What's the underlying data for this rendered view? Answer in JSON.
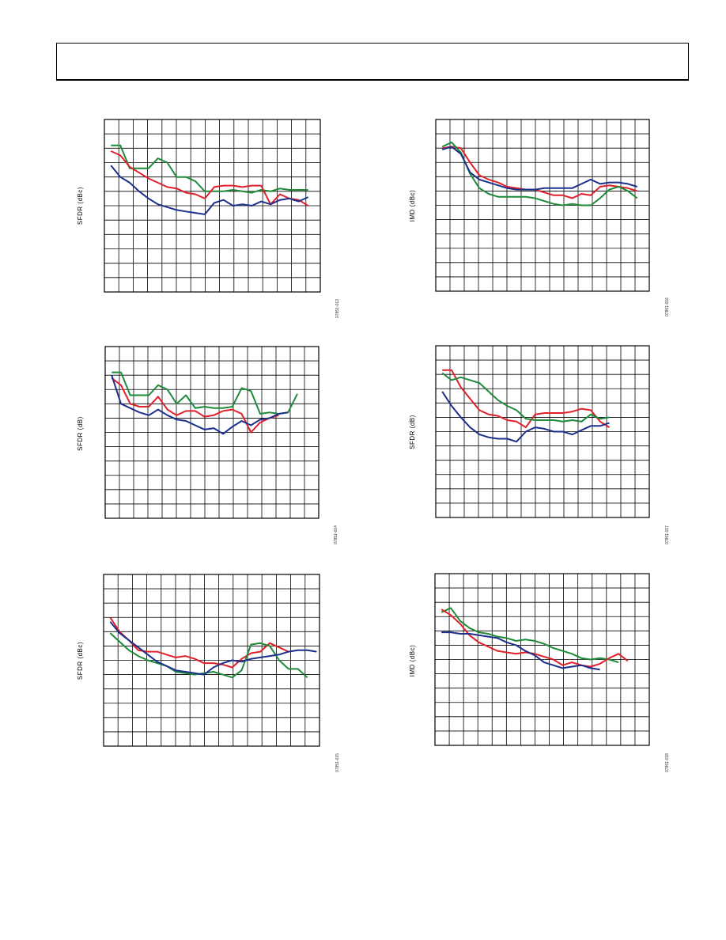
{
  "page": {
    "header_title": ""
  },
  "chart_data": [
    {
      "type": "line",
      "ylabel": "SFDR (dBc)",
      "figure_id": "07851-013",
      "grid": true,
      "xlim": [
        0,
        23
      ],
      "ylim": [
        0,
        12
      ],
      "series": [
        {
          "color": "#1f8a3a",
          "values": [
            10.2,
            10.2,
            8.6,
            8.6,
            8.6,
            9.3,
            9.0,
            8.0,
            8.0,
            7.7,
            7.0,
            7.0,
            7.0,
            7.1,
            7.0,
            6.9,
            7.1,
            7.0,
            7.2,
            7.1,
            7.1,
            7.1
          ]
        },
        {
          "color": "#e0202a",
          "values": [
            9.8,
            9.5,
            8.7,
            8.3,
            7.9,
            7.6,
            7.3,
            7.2,
            6.9,
            6.8,
            6.5,
            7.3,
            7.4,
            7.4,
            7.3,
            7.4,
            7.4,
            6.1,
            6.8,
            6.5,
            6.4,
            6.0
          ]
        },
        {
          "color": "#1c2f8a",
          "values": [
            8.8,
            8.0,
            7.6,
            7.0,
            6.5,
            6.1,
            5.9,
            5.7,
            5.6,
            5.5,
            5.4,
            6.2,
            6.4,
            6.0,
            6.1,
            6.0,
            6.3,
            6.1,
            6.4,
            6.5,
            6.3,
            6.6
          ]
        }
      ]
    },
    {
      "type": "line",
      "ylabel": "IMD (dBc)",
      "figure_id": "07851-016",
      "grid": true,
      "xlim": [
        0,
        23
      ],
      "ylim": [
        0,
        12
      ],
      "series": [
        {
          "color": "#e0202a",
          "values": [
            10.0,
            10.1,
            10.0,
            9.0,
            8.1,
            7.8,
            7.6,
            7.3,
            7.2,
            7.1,
            7.1,
            6.9,
            6.7,
            6.7,
            6.5,
            6.8,
            6.7,
            7.3,
            7.4,
            7.3,
            7.2,
            7.0
          ]
        },
        {
          "color": "#1f8a3a",
          "values": [
            10.1,
            10.4,
            9.7,
            8.2,
            7.2,
            6.8,
            6.6,
            6.6,
            6.6,
            6.6,
            6.5,
            6.3,
            6.1,
            6.0,
            6.1,
            6.0,
            6.0,
            6.5,
            7.1,
            7.3,
            7.0,
            6.5
          ]
        },
        {
          "color": "#1c2f8a",
          "values": [
            9.9,
            10.1,
            9.6,
            8.3,
            7.8,
            7.6,
            7.4,
            7.2,
            7.1,
            7.1,
            7.1,
            7.2,
            7.2,
            7.2,
            7.2,
            7.5,
            7.8,
            7.5,
            7.6,
            7.6,
            7.5,
            7.3
          ]
        }
      ]
    },
    {
      "type": "line",
      "ylabel": "SFDR (dB)",
      "figure_id": "07851-014",
      "grid": true,
      "xlim": [
        0,
        23
      ],
      "ylim": [
        0,
        12
      ],
      "series": [
        {
          "color": "#1f8a3a",
          "values": [
            10.2,
            10.2,
            8.6,
            8.6,
            8.6,
            9.3,
            9.0,
            8.0,
            8.6,
            7.7,
            7.8,
            7.7,
            7.7,
            7.8,
            9.1,
            8.9,
            7.3,
            7.4,
            7.3,
            7.4,
            8.7
          ]
        },
        {
          "color": "#e0202a",
          "values": [
            9.8,
            9.3,
            8.0,
            7.8,
            7.8,
            8.5,
            7.6,
            7.2,
            7.5,
            7.5,
            7.1,
            7.2,
            7.5,
            7.6,
            7.3,
            6.0,
            6.7,
            7.0,
            7.2
          ]
        },
        {
          "color": "#1c2f8a",
          "values": [
            10.0,
            8.0,
            7.7,
            7.4,
            7.2,
            7.6,
            7.2,
            6.9,
            6.8,
            6.5,
            6.2,
            6.3,
            5.9,
            6.4,
            6.8,
            6.5,
            6.9,
            7.0,
            7.3,
            7.4
          ]
        }
      ]
    },
    {
      "type": "line",
      "ylabel": "SFDR (dB)",
      "figure_id": "07851-017",
      "grid": true,
      "xlim": [
        0,
        23
      ],
      "ylim": [
        0,
        12
      ],
      "series": [
        {
          "color": "#e0202a",
          "values": [
            10.3,
            10.3,
            9.1,
            8.3,
            7.5,
            7.2,
            7.1,
            6.8,
            6.7,
            6.3,
            7.2,
            7.3,
            7.3,
            7.3,
            7.4,
            7.6,
            7.5,
            6.7,
            6.3
          ]
        },
        {
          "color": "#1f8a3a",
          "values": [
            10.1,
            9.6,
            9.8,
            9.6,
            9.4,
            8.8,
            8.2,
            7.8,
            7.5,
            6.9,
            6.8,
            6.8,
            6.8,
            6.7,
            6.8,
            6.7,
            7.2,
            6.9,
            7.0
          ]
        },
        {
          "color": "#1c2f8a",
          "values": [
            8.8,
            7.8,
            7.0,
            6.3,
            5.8,
            5.6,
            5.5,
            5.5,
            5.3,
            6.0,
            6.3,
            6.2,
            6.0,
            6.0,
            5.8,
            6.1,
            6.4,
            6.4,
            6.6
          ]
        }
      ]
    },
    {
      "type": "line",
      "ylabel": "SFDR (dBc)",
      "figure_id": "07851-015",
      "grid": true,
      "xlim": [
        0,
        23
      ],
      "ylim": [
        0,
        12
      ],
      "series": [
        {
          "color": "#e0202a",
          "values": [
            9.0,
            8.0,
            7.4,
            6.7,
            6.6,
            6.6,
            6.4,
            6.2,
            6.3,
            6.1,
            5.8,
            5.8,
            5.7,
            5.5,
            6.1,
            6.5,
            6.6,
            7.2,
            6.9,
            6.6
          ]
        },
        {
          "color": "#1f8a3a",
          "values": [
            7.9,
            7.3,
            6.7,
            6.3,
            6.0,
            5.8,
            5.6,
            5.2,
            5.1,
            5.0,
            5.1,
            5.2,
            5.0,
            4.8,
            5.3,
            7.1,
            7.2,
            7.0,
            6.0,
            5.4,
            5.4,
            4.8
          ]
        },
        {
          "color": "#1c2f8a",
          "values": [
            8.7,
            7.9,
            7.4,
            6.9,
            6.4,
            5.9,
            5.6,
            5.3,
            5.2,
            5.1,
            5.0,
            5.5,
            5.8,
            6.0,
            5.9,
            6.1,
            6.2,
            6.3,
            6.4,
            6.6,
            6.7,
            6.7,
            6.6
          ]
        }
      ]
    },
    {
      "type": "line",
      "ylabel": "IMD (dBc)",
      "figure_id": "07851-018",
      "grid": true,
      "xlim": [
        0,
        23
      ],
      "ylim": [
        0,
        12
      ],
      "series": [
        {
          "color": "#1f8a3a",
          "values": [
            9.3,
            9.6,
            8.7,
            8.2,
            7.9,
            7.8,
            7.6,
            7.5,
            7.3,
            7.4,
            7.3,
            7.1,
            6.8,
            6.6,
            6.4,
            6.1,
            6.0,
            6.1,
            6.0,
            5.8
          ]
        },
        {
          "color": "#e0202a",
          "values": [
            9.5,
            9.1,
            8.5,
            7.7,
            7.2,
            6.9,
            6.6,
            6.5,
            6.4,
            6.5,
            6.4,
            6.2,
            6.0,
            5.6,
            5.8,
            5.6,
            5.5,
            5.7,
            6.1,
            6.4,
            5.9
          ]
        },
        {
          "color": "#1c2f8a",
          "values": [
            7.9,
            7.9,
            7.8,
            7.8,
            7.7,
            7.6,
            7.5,
            7.2,
            7.0,
            6.6,
            6.3,
            5.8,
            5.6,
            5.4,
            5.5,
            5.6,
            5.4,
            5.3
          ]
        }
      ]
    }
  ]
}
